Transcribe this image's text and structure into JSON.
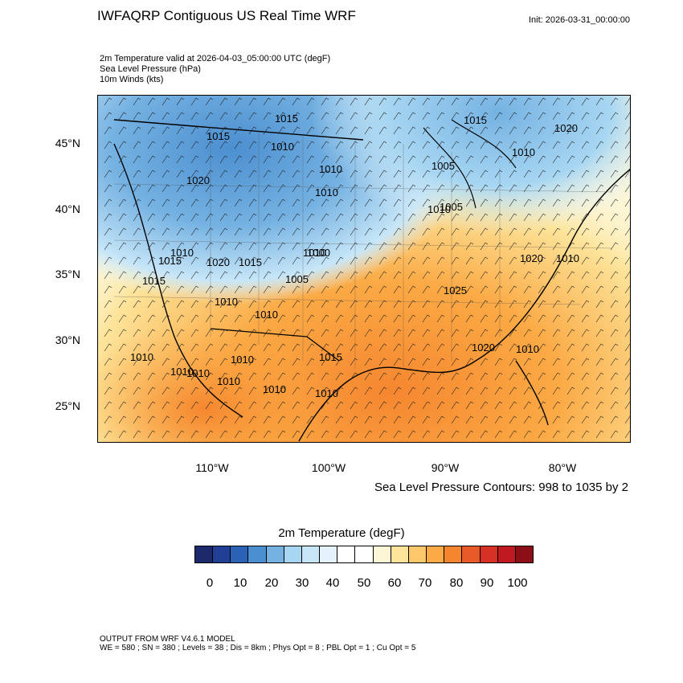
{
  "title": "IWFAQRP Contiguous US Real Time WRF",
  "init": "Init: 2026-03-31_00:00:00",
  "subtitles": [
    "2m Temperature valid at 2026-04-03_05:00:00 UTC   (degF)",
    "Sea Level Pressure   (hPa)",
    "10m Winds   (kts)"
  ],
  "lat_labels": [
    "45°N",
    "40°N",
    "35°N",
    "30°N",
    "25°N"
  ],
  "lon_labels": [
    "110°W",
    "100°W",
    "90°W",
    "80°W"
  ],
  "contours_note": "Sea Level Pressure Contours: 998 to 1035 by 2",
  "colorbar": {
    "title": "2m Temperature  (degF)",
    "colors": [
      "#1c2a6b",
      "#213f95",
      "#2b62b6",
      "#4c8fd0",
      "#75b2e2",
      "#a7d6f2",
      "#c7e6f8",
      "#e4f3fb",
      "#ffffff",
      "#ffffff",
      "#fdf6d6",
      "#fde49a",
      "#fcc76a",
      "#fbaa45",
      "#f5862f",
      "#e95a29",
      "#d63024",
      "#bf1a22",
      "#8c0f17"
    ],
    "labels": [
      "0",
      "10",
      "20",
      "30",
      "40",
      "50",
      "60",
      "70",
      "80",
      "90",
      "100"
    ]
  },
  "isobar_labels": [
    "1015",
    "1015",
    "1020",
    "1015",
    "1010",
    "1010",
    "1020",
    "1010",
    "1005",
    "1010",
    "1005",
    "1010",
    "1020",
    "1010",
    "1020",
    "1015",
    "1010",
    "1010",
    "1015",
    "1000",
    "1005",
    "1025",
    "1015",
    "1010",
    "1010",
    "1010",
    "1010",
    "1010",
    "1015",
    "1020",
    "1010",
    "1010",
    "1010",
    "1010",
    "1010"
  ],
  "footer": [
    "OUTPUT FROM WRF V4.6.1 MODEL",
    "WE = 580 ; SN = 380 ; Levels = 38 ; Dis = 8km ; Phys Opt = 8 ; PBL Opt = 1 ; Cu Opt = 5"
  ]
}
